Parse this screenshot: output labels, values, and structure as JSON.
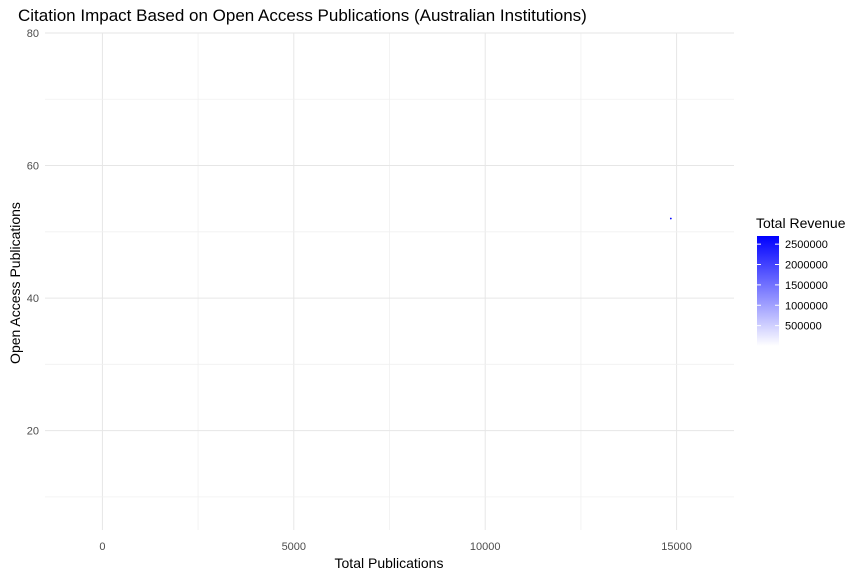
{
  "chart_data": {
    "type": "scatter",
    "title": "Citation Impact Based on Open Access Publications (Australian Institutions)",
    "xlabel": "Total Publications",
    "ylabel": "Open Access Publications",
    "xlim": [
      -1500,
      16500
    ],
    "ylim": [
      5,
      80
    ],
    "x_ticks": [
      0,
      5000,
      10000,
      15000
    ],
    "x_tick_labels": [
      "0",
      "5000",
      "10000",
      "15000"
    ],
    "y_ticks": [
      20,
      40,
      60,
      80
    ],
    "y_tick_labels": [
      "20",
      "40",
      "60",
      "80"
    ],
    "grid": true,
    "points": [
      {
        "x": 14850,
        "y": 52,
        "revenue": 2700000
      }
    ],
    "color_scale": {
      "title": "Total Revenue",
      "low_color": "#ffffff",
      "high_color": "#0000ff",
      "min": 0,
      "max": 2700000,
      "breaks": [
        500000,
        1000000,
        1500000,
        2000000,
        2500000
      ],
      "break_labels": [
        "500000",
        "1000000",
        "1500000",
        "2000000",
        "2500000"
      ]
    },
    "legend_position": "right"
  }
}
